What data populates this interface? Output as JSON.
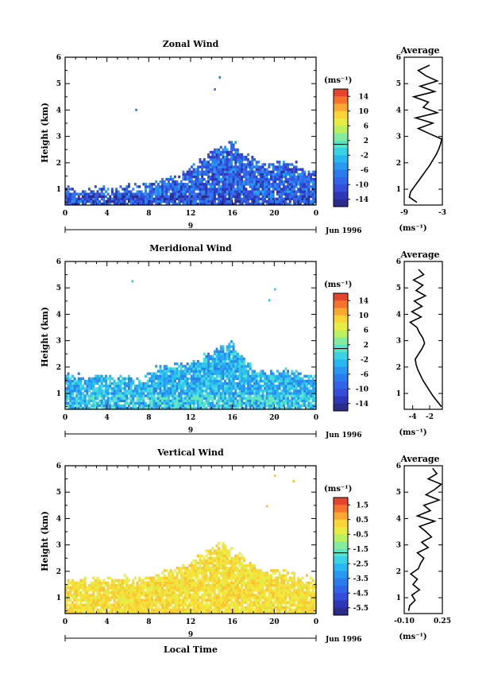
{
  "chart_data": [
    {
      "type": "heatmap",
      "name": "zonal",
      "title": "Zonal Wind",
      "ylabel": "Height (km)",
      "xlabel": "",
      "unit": "(ms⁻¹)",
      "date_label": "Jun 1996",
      "day_label": "9",
      "xlim": [
        0,
        24
      ],
      "ylim": [
        0.4,
        6
      ],
      "xticks": [
        "0",
        "4",
        "8",
        "12",
        "16",
        "20",
        "0"
      ],
      "yticks": [
        "1",
        "2",
        "3",
        "4",
        "5",
        "6"
      ],
      "colorbar_ticks": [
        "14",
        "10",
        "6",
        "2",
        "-2",
        "-6",
        "-10",
        "-14"
      ],
      "colorbar_range": [
        -16,
        16
      ],
      "data_ceiling_km": [
        1.1,
        0.9,
        0.9,
        1.0,
        0.9,
        1.0,
        1.1,
        1.0,
        1.2,
        1.3,
        1.4,
        1.5,
        1.8,
        2.1,
        2.4,
        2.6,
        2.8,
        2.3,
        2.1,
        1.9,
        1.9,
        2.0,
        1.9,
        1.6,
        1.8
      ],
      "average_profile": {
        "title": "Average",
        "xlabel": "(ms⁻¹)",
        "xticks": [
          "-9",
          "-3"
        ],
        "xlim": [
          -9,
          -3
        ],
        "yticks": [
          "1",
          "2",
          "3",
          "4",
          "5",
          "6"
        ],
        "height_km": [
          0.5,
          0.7,
          0.9,
          1.1,
          1.3,
          1.5,
          1.7,
          1.9,
          2.1,
          2.3,
          2.5,
          2.7,
          2.9,
          3.1,
          3.3,
          3.5,
          3.7,
          3.9,
          4.1,
          4.3,
          4.5,
          4.7,
          4.9,
          5.1,
          5.3,
          5.5,
          5.7
        ],
        "values": [
          -7.0,
          -8.2,
          -8.0,
          -7.4,
          -6.8,
          -6.2,
          -5.6,
          -5.0,
          -4.5,
          -4.0,
          -3.6,
          -3.3,
          -3.1,
          -5.0,
          -6.8,
          -4.5,
          -7.2,
          -3.8,
          -6.0,
          -5.2,
          -7.5,
          -4.2,
          -6.5,
          -3.8,
          -5.6,
          -6.8,
          -5.0
        ]
      }
    },
    {
      "type": "heatmap",
      "name": "meridional",
      "title": "Meridional Wind",
      "ylabel": "Height (km)",
      "xlabel": "",
      "unit": "(ms⁻¹)",
      "date_label": "Jun 1996",
      "day_label": "9",
      "xlim": [
        0,
        24
      ],
      "ylim": [
        0.4,
        6
      ],
      "xticks": [
        "0",
        "4",
        "8",
        "12",
        "16",
        "20",
        "0"
      ],
      "yticks": [
        "1",
        "2",
        "3",
        "4",
        "5",
        "6"
      ],
      "colorbar_ticks": [
        "14",
        "10",
        "6",
        "2",
        "-2",
        "-6",
        "-10",
        "-14"
      ],
      "colorbar_range": [
        -16,
        16
      ],
      "data_ceiling_km": [
        1.7,
        1.6,
        1.6,
        1.7,
        1.6,
        1.6,
        1.6,
        1.5,
        1.7,
        2.0,
        2.1,
        2.1,
        2.2,
        2.3,
        2.6,
        2.8,
        2.9,
        2.3,
        1.9,
        1.8,
        1.8,
        1.9,
        1.8,
        1.6,
        1.7
      ],
      "average_profile": {
        "title": "Average",
        "xlabel": "(ms⁻¹)",
        "xticks": [
          "-4",
          "-2"
        ],
        "xlim": [
          -5,
          -0.5
        ],
        "yticks": [
          "1",
          "2",
          "3",
          "4",
          "5",
          "6"
        ],
        "height_km": [
          0.5,
          0.7,
          0.9,
          1.1,
          1.3,
          1.5,
          1.7,
          1.9,
          2.1,
          2.3,
          2.5,
          2.7,
          2.9,
          3.1,
          3.3,
          3.5,
          3.7,
          3.9,
          4.1,
          4.3,
          4.5,
          4.7,
          4.9,
          5.1,
          5.3,
          5.5,
          5.7
        ],
        "values": [
          -0.6,
          -1.1,
          -1.6,
          -2.0,
          -2.4,
          -2.8,
          -3.1,
          -3.4,
          -3.6,
          -3.7,
          -3.3,
          -2.9,
          -2.6,
          -2.8,
          -3.2,
          -3.5,
          -4.3,
          -3.0,
          -4.1,
          -2.9,
          -3.8,
          -2.5,
          -3.6,
          -2.8,
          -3.9,
          -2.7,
          -3.3
        ]
      }
    },
    {
      "type": "heatmap",
      "name": "vertical",
      "title": "Vertical Wind",
      "ylabel": "Height (km)",
      "xlabel": "Local Time",
      "unit": "(ms⁻¹)",
      "date_label": "Jun 1996",
      "day_label": "9",
      "xlim": [
        0,
        24
      ],
      "ylim": [
        0.4,
        6
      ],
      "xticks": [
        "0",
        "4",
        "8",
        "12",
        "16",
        "20",
        "0"
      ],
      "yticks": [
        "1",
        "2",
        "3",
        "4",
        "5",
        "6"
      ],
      "colorbar_ticks": [
        "1.5",
        "0.5",
        "-0.5",
        "-1.5",
        "-2.5",
        "-3.5",
        "-4.5",
        "-5.5"
      ],
      "colorbar_range": [
        -6,
        2
      ],
      "data_ceiling_km": [
        1.7,
        1.7,
        1.6,
        1.7,
        1.6,
        1.7,
        1.7,
        1.7,
        1.8,
        1.9,
        2.0,
        2.1,
        2.3,
        2.6,
        2.8,
        3.0,
        2.7,
        2.5,
        2.1,
        2.0,
        2.0,
        1.9,
        1.8,
        1.7,
        1.6
      ],
      "average_profile": {
        "title": "Average",
        "xlabel": "(ms⁻¹)",
        "xticks": [
          "-0.10",
          "0.25"
        ],
        "xlim": [
          -0.1,
          0.25
        ],
        "yticks": [
          "1",
          "2",
          "3",
          "4",
          "5",
          "6"
        ],
        "height_km": [
          0.5,
          0.7,
          0.9,
          1.1,
          1.3,
          1.5,
          1.7,
          1.9,
          2.1,
          2.3,
          2.5,
          2.7,
          2.9,
          3.1,
          3.3,
          3.5,
          3.7,
          3.9,
          4.1,
          4.3,
          4.5,
          4.7,
          4.9,
          5.1,
          5.3,
          5.5,
          5.7,
          5.9
        ],
        "values": [
          -0.06,
          -0.05,
          0.0,
          -0.03,
          0.04,
          -0.02,
          0.02,
          -0.04,
          0.03,
          0.05,
          0.08,
          0.02,
          0.12,
          0.06,
          0.15,
          0.1,
          0.04,
          0.18,
          0.02,
          0.14,
          0.08,
          0.22,
          0.1,
          0.18,
          0.24,
          0.12,
          0.2,
          0.16
        ]
      }
    }
  ]
}
